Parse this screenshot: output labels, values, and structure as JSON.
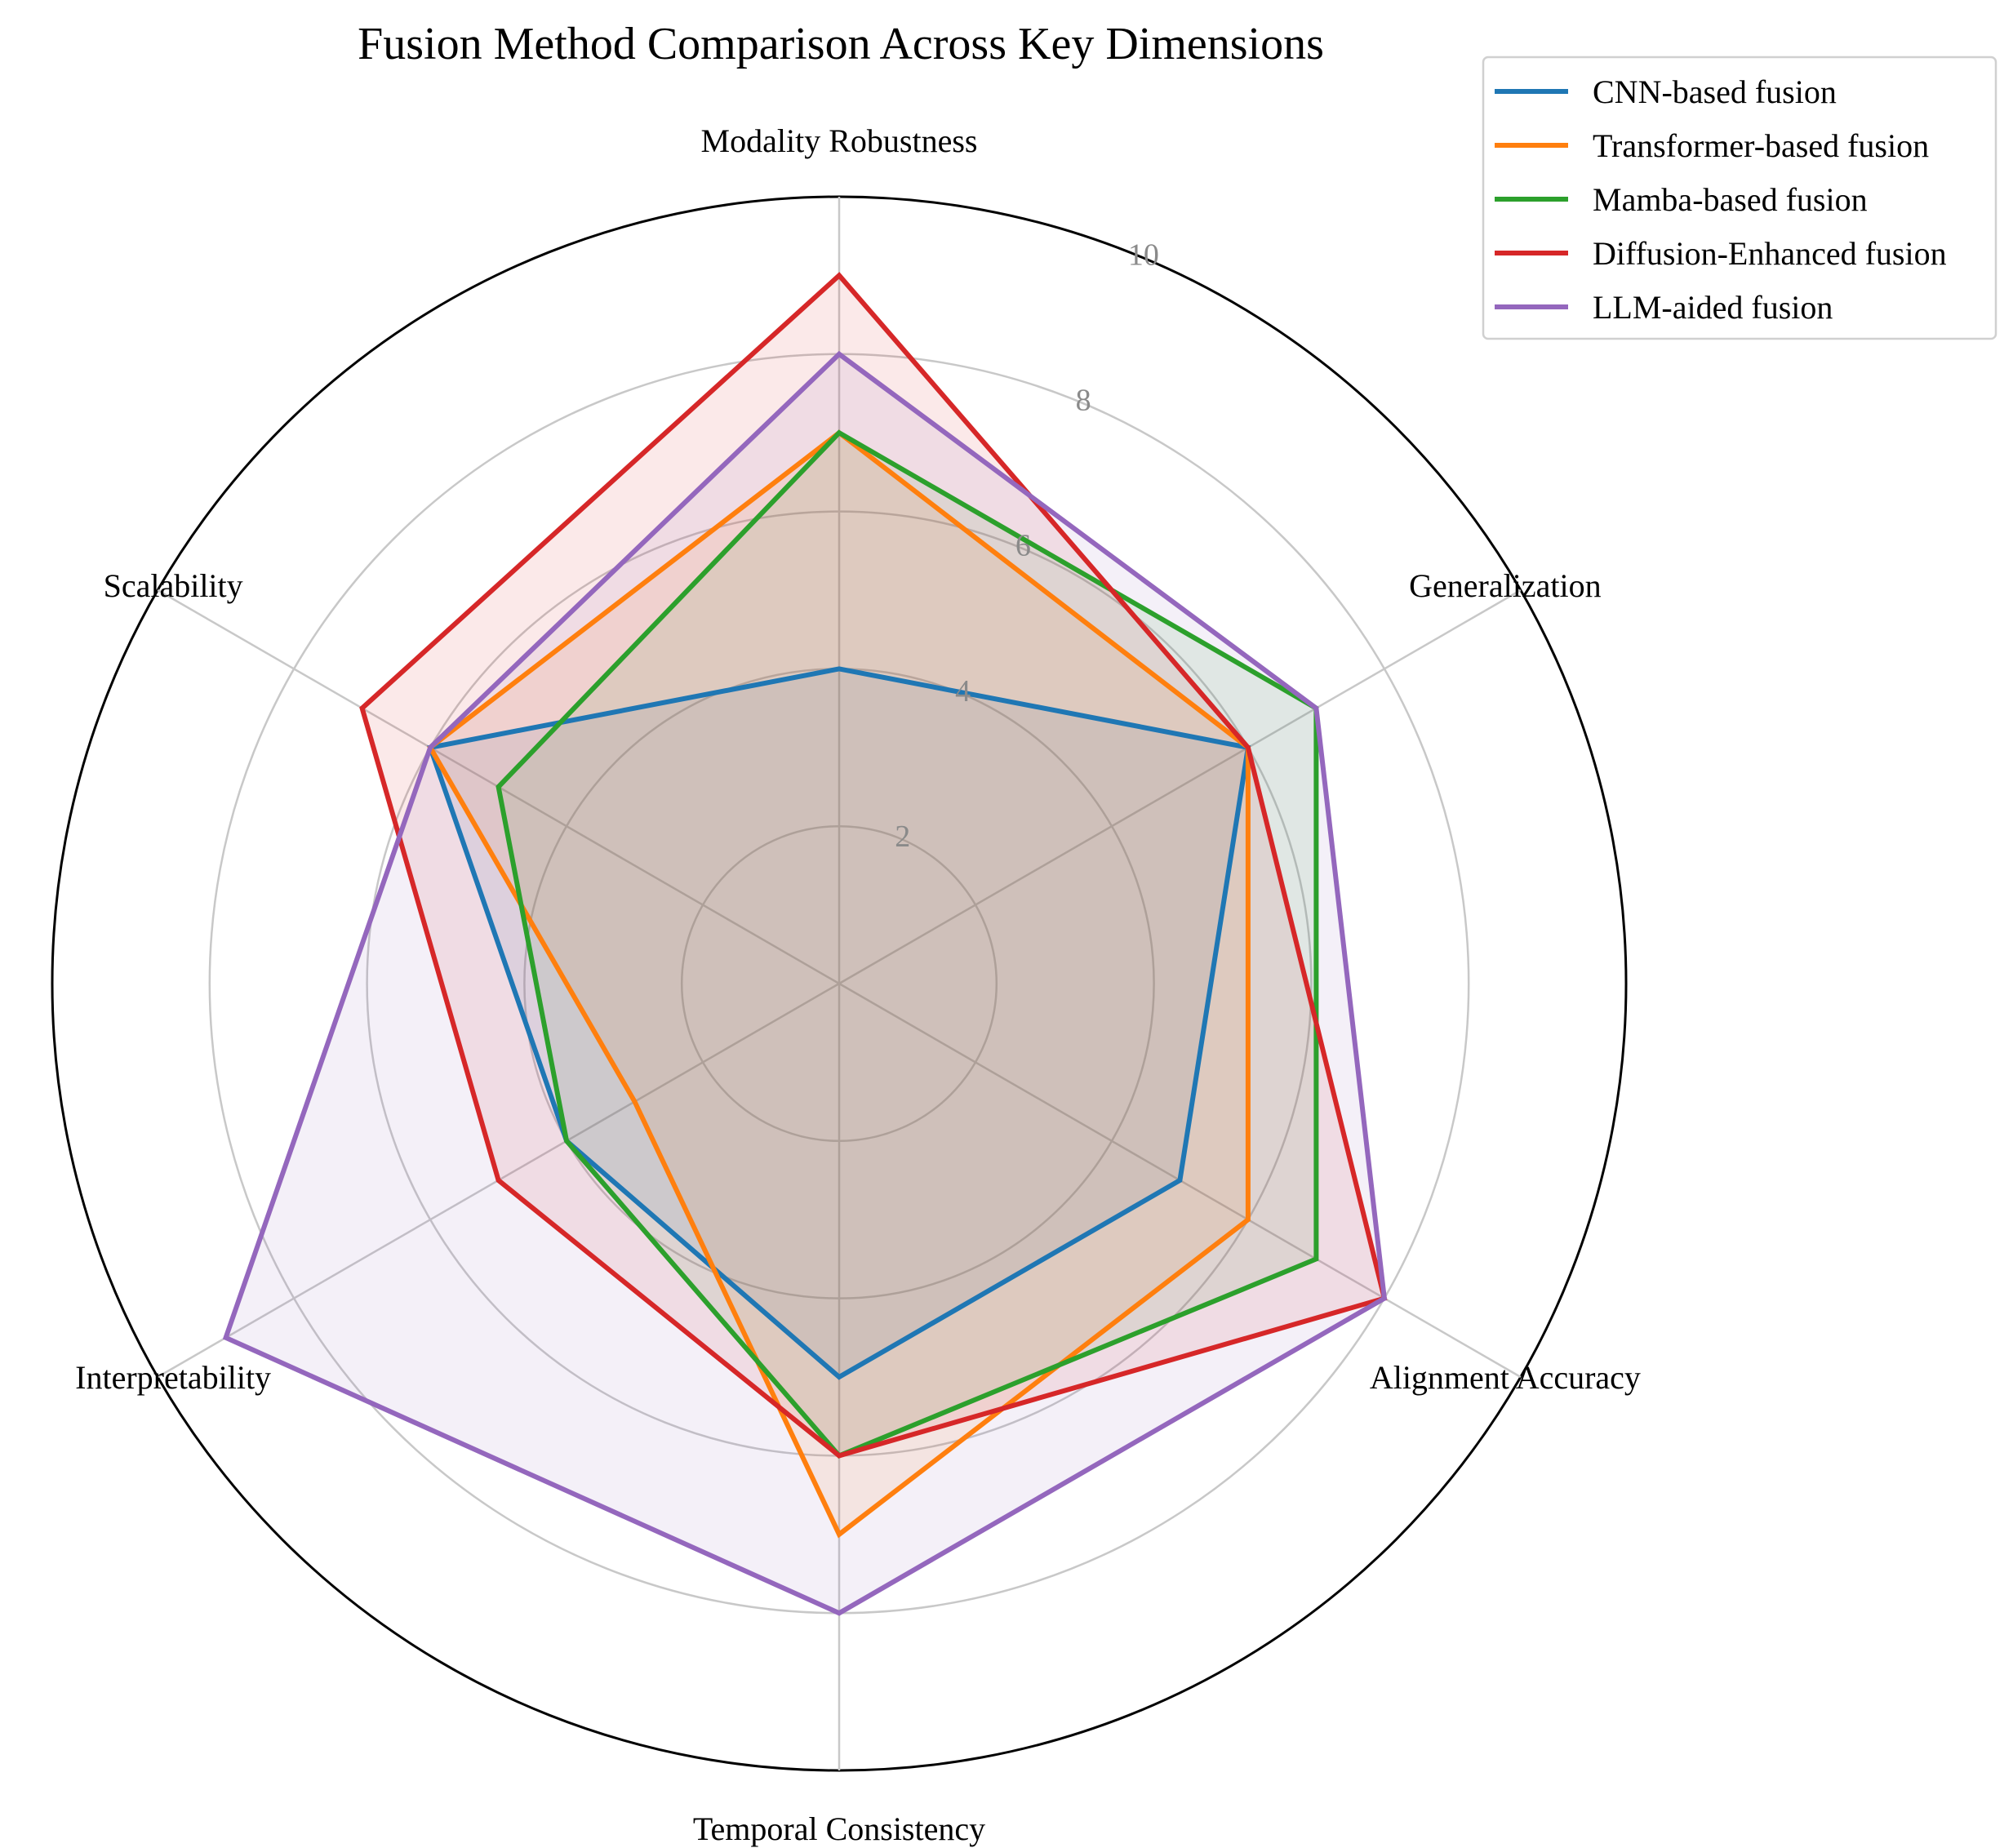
{
  "chart_data": {
    "type": "radar",
    "title": "Fusion Method Comparison Across Key Dimensions",
    "axes": [
      "Modality Robustness",
      "Generalization",
      "Alignment Accuracy",
      "Temporal Consistency",
      "Interpretability",
      "Scalability"
    ],
    "rlim": [
      0,
      10
    ],
    "rticks": [
      2,
      4,
      6,
      8,
      10
    ],
    "rtick_labels": [
      "2",
      "4",
      "6",
      "8",
      "10"
    ],
    "grid": true,
    "legend_position": "top-right",
    "series": [
      {
        "name": "CNN-based fusion",
        "color": "#1f77b4",
        "values": [
          4,
          6,
          5,
          5,
          4,
          6
        ]
      },
      {
        "name": "Transformer-based fusion",
        "color": "#ff7f0e",
        "values": [
          7,
          6,
          6,
          7,
          3,
          6
        ]
      },
      {
        "name": "Mamba-based fusion",
        "color": "#2ca02c",
        "values": [
          7,
          7,
          7,
          6,
          4,
          5
        ]
      },
      {
        "name": "Diffusion-Enhanced fusion",
        "color": "#d62728",
        "values": [
          9,
          6,
          8,
          6,
          5,
          7
        ]
      },
      {
        "name": "LLM-aided fusion",
        "color": "#9467bd",
        "values": [
          8,
          7,
          8,
          8,
          9,
          6
        ]
      }
    ]
  }
}
